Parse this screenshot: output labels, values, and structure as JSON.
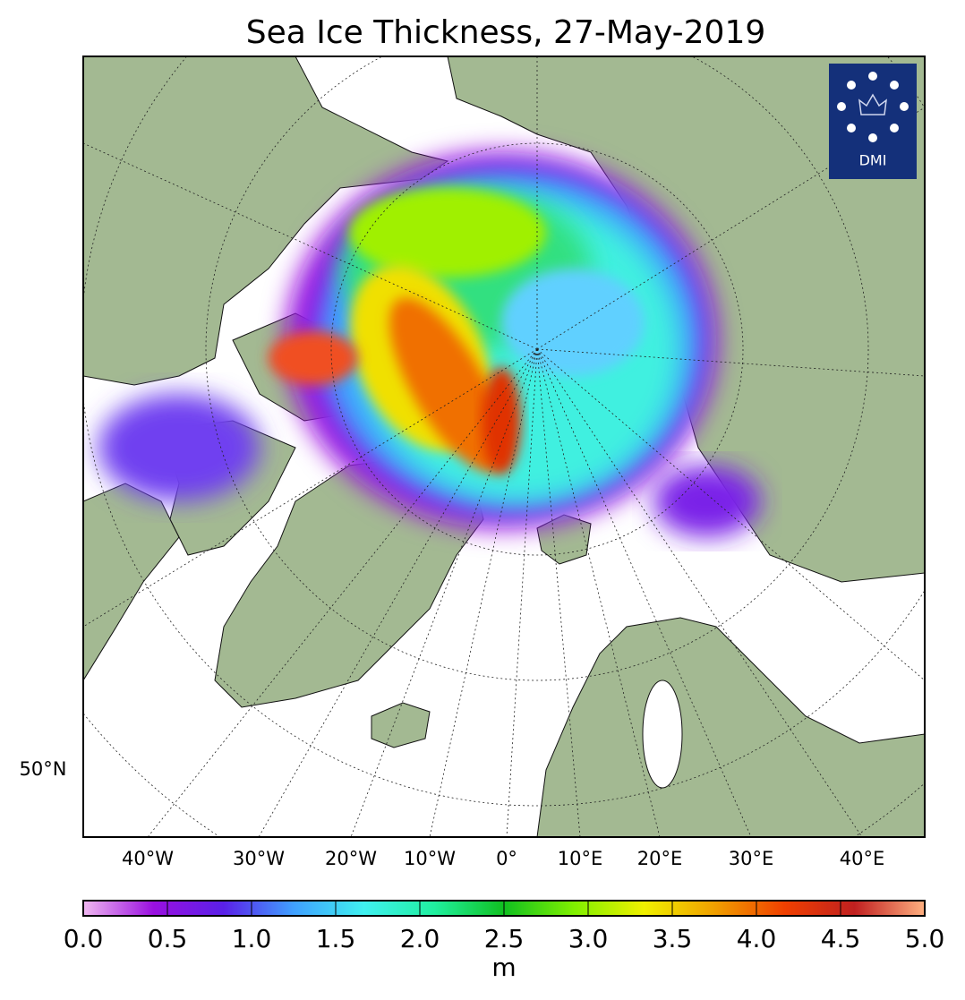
{
  "map": {
    "title": "Sea Ice Thickness, 27-May-2019",
    "longitude_labels": [
      "40°W",
      "30°W",
      "20°W",
      "10°W",
      "0°",
      "10°E",
      "20°E",
      "30°E",
      "40°E"
    ],
    "latitude_labels": [
      "50°N"
    ],
    "logo": "DMI",
    "colorbar": {
      "label": "m",
      "lim": [
        0,
        5
      ],
      "ticks": [
        {
          "value": 0,
          "label": "0.0"
        },
        {
          "value": 0.5,
          "label": "0.5"
        },
        {
          "value": 1,
          "label": "1.0"
        },
        {
          "value": 1.5,
          "label": "1.5"
        },
        {
          "value": 2,
          "label": "2.0"
        },
        {
          "value": 2.5,
          "label": "2.5"
        },
        {
          "value": 3,
          "label": "3.0"
        },
        {
          "value": 3.5,
          "label": "3.5"
        },
        {
          "value": 4,
          "label": "4.0"
        },
        {
          "value": 4.5,
          "label": "4.5"
        },
        {
          "value": 5,
          "label": "5.0"
        }
      ],
      "colors": [
        "#f0b8f0",
        "#9a10e0",
        "#5a20e8",
        "#40a0ff",
        "#40f0f0",
        "#20f0a0",
        "#10c020",
        "#80f000",
        "#f0f000",
        "#f0a000",
        "#f04000",
        "#c02020",
        "#ffb080"
      ]
    }
  }
}
